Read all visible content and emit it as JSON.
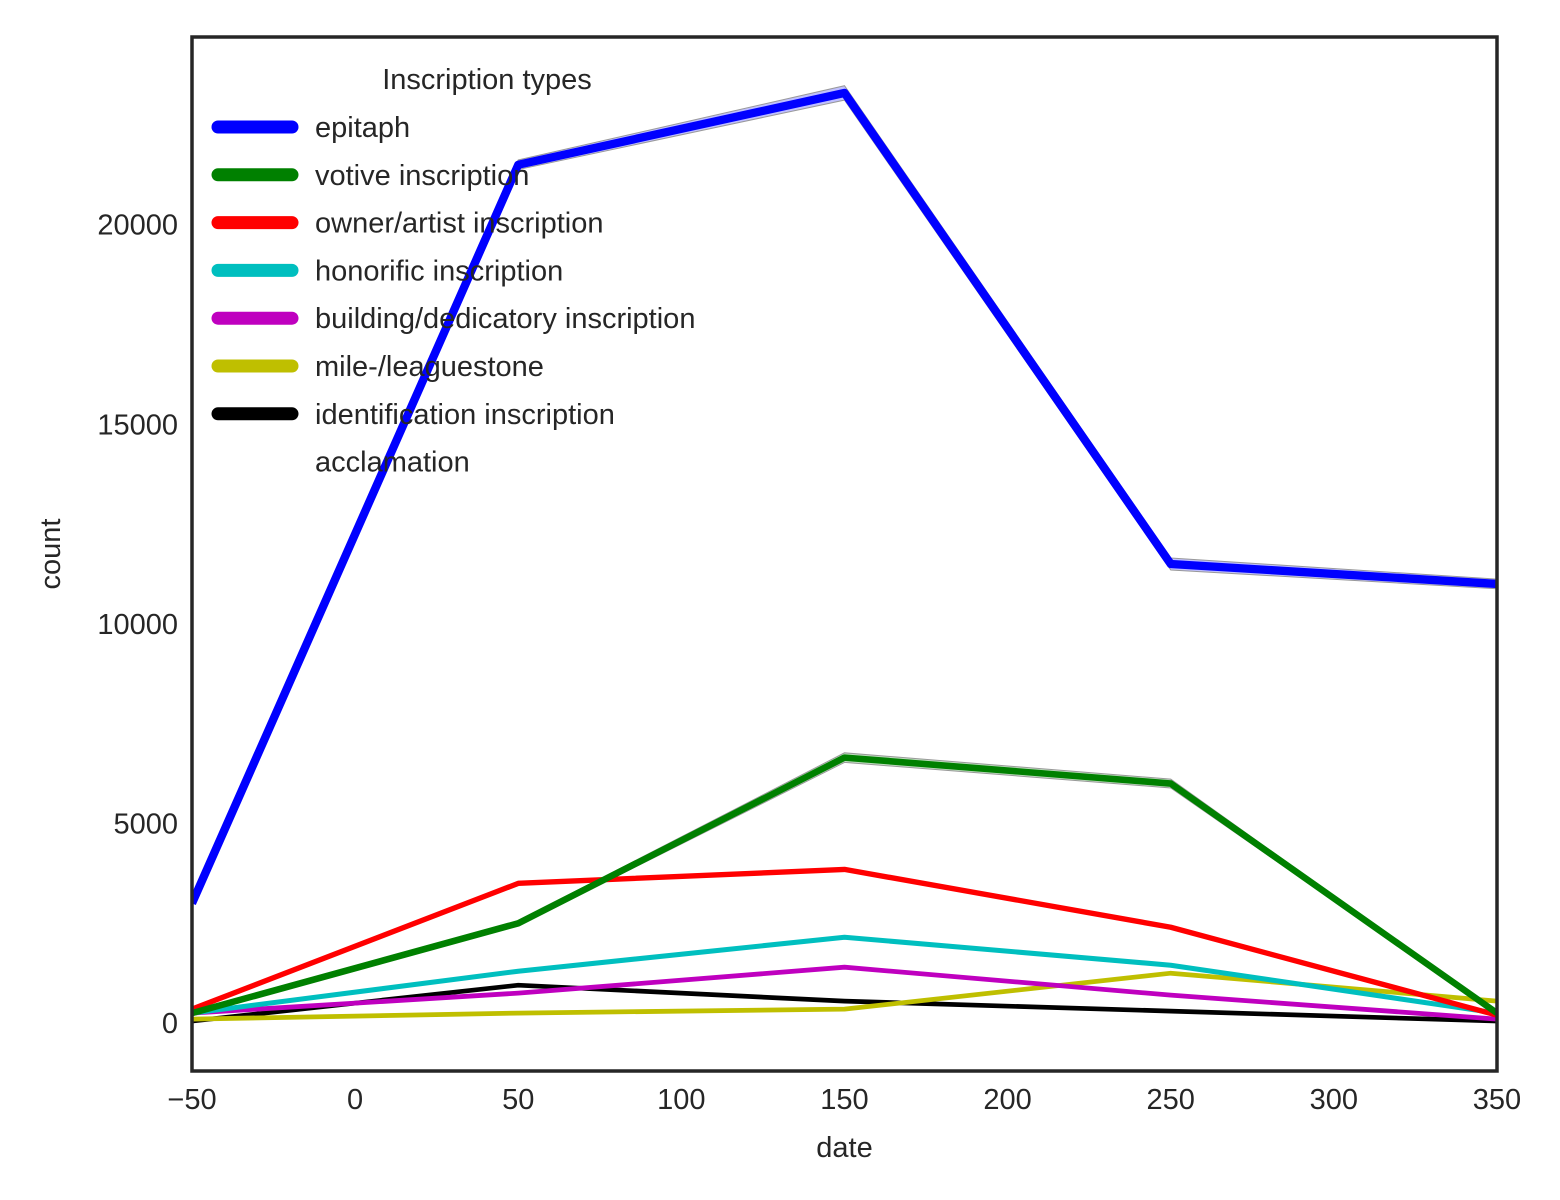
{
  "chart_data": {
    "type": "line",
    "xlabel": "date",
    "ylabel": "count",
    "xlim": [
      -50,
      350
    ],
    "ylim": [
      -1200,
      24700
    ],
    "x_ticks": [
      -50,
      0,
      50,
      100,
      150,
      200,
      250,
      300,
      350
    ],
    "x_tick_labels": [
      "−50",
      "0",
      "50",
      "100",
      "150",
      "200",
      "250",
      "300",
      "350"
    ],
    "y_ticks": [
      0,
      5000,
      10000,
      15000,
      20000
    ],
    "y_tick_labels": [
      "0",
      "5000",
      "10000",
      "15000",
      "20000"
    ],
    "grid": false,
    "legend": {
      "title": "Inscription types",
      "placement": "upper-left"
    },
    "x": [
      -50,
      50,
      150,
      250,
      350
    ],
    "series": [
      {
        "name": "epitaph",
        "color": "#0000ff",
        "values": [
          3000,
          21500,
          23300,
          11500,
          11000
        ],
        "error": [
          0,
          120,
          180,
          150,
          120
        ]
      },
      {
        "name": "votive inscription",
        "color": "#008000",
        "values": [
          250,
          2500,
          6650,
          6000,
          250
        ],
        "error": [
          0,
          60,
          120,
          110,
          20
        ]
      },
      {
        "name": "owner/artist inscription",
        "color": "#ff0000",
        "values": [
          350,
          3500,
          3850,
          2400,
          200
        ],
        "error": [
          0,
          40,
          40,
          40,
          10
        ]
      },
      {
        "name": "honorific inscription",
        "color": "#00bfbf",
        "values": [
          250,
          1300,
          2150,
          1450,
          250
        ],
        "error": [
          0,
          20,
          30,
          20,
          10
        ]
      },
      {
        "name": "building/dedicatory inscription",
        "color": "#bf00bf",
        "values": [
          250,
          750,
          1400,
          700,
          100
        ],
        "error": [
          0,
          10,
          20,
          10,
          5
        ]
      },
      {
        "name": "mile-/leaguestone",
        "color": "#bfbf00",
        "values": [
          100,
          250,
          350,
          1250,
          550
        ],
        "error": [
          0,
          5,
          5,
          20,
          10
        ]
      },
      {
        "name": "identification inscription",
        "color": "#000000",
        "values": [
          50,
          950,
          550,
          300,
          50
        ],
        "error": [
          0,
          10,
          10,
          5,
          2
        ]
      },
      {
        "name": "acclamation",
        "color": "#ffffff",
        "values": [
          0,
          0,
          0,
          0,
          0
        ],
        "error": [
          0,
          0,
          0,
          0,
          0
        ]
      }
    ]
  }
}
